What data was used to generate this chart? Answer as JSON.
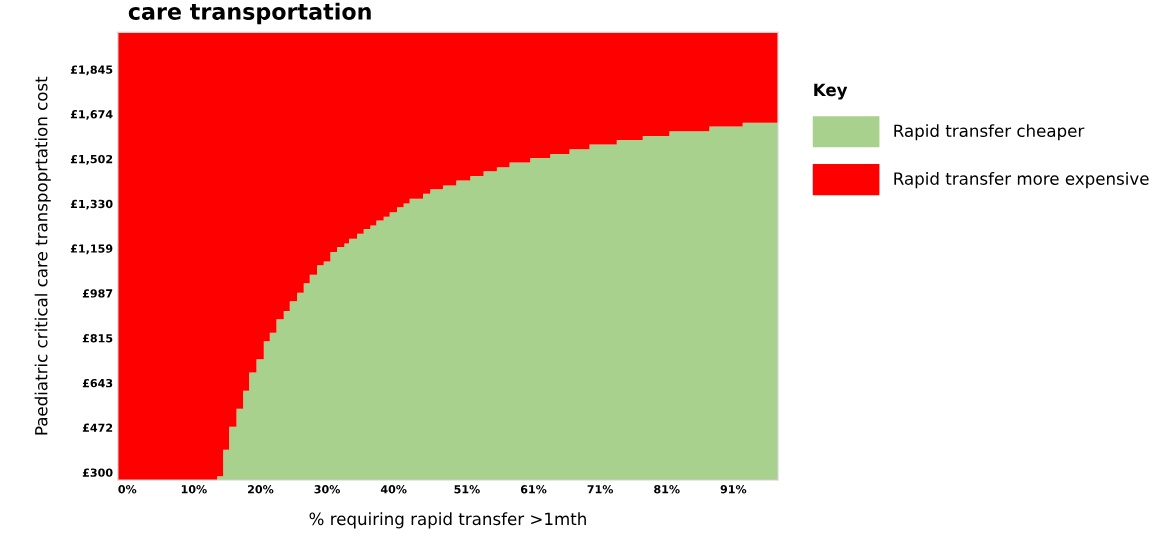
{
  "chart_data": {
    "type": "area",
    "stacked": true,
    "title": "care transportation",
    "xlabel": "% requiring rapid transfer >1mth",
    "ylabel": "Paediatric critical care transpoprtation cost",
    "legend_title": "Key",
    "legend": "right",
    "grid": false,
    "x": [
      -1.4,
      13.5,
      14.4,
      15.3,
      16.4,
      17.4,
      18.3,
      19.4,
      20.5,
      21.4,
      22.4,
      23.5,
      24.4,
      25.5,
      26.5,
      27.4,
      28.5,
      29.5,
      30.5,
      31.5,
      32.6,
      33.3,
      34.5,
      35.5,
      36.5,
      37.4,
      38.5,
      39.4,
      40.5,
      41.5,
      42.4,
      44.4,
      45.5,
      47.4,
      49.4,
      51.5,
      53.5,
      55.5,
      57.4,
      60.5,
      63.5,
      66.4,
      69.4,
      73.5,
      77.4,
      81.4,
      87.4,
      92.4,
      97.7
    ],
    "series": [
      {
        "name": "Rapid transfer cheaper",
        "color": "#a9d18e",
        "values": [
          271,
          285,
          387,
          475,
          544,
          613,
          683,
          734,
          803,
          836,
          887,
          919,
          956,
          989,
          1025,
          1058,
          1094,
          1109,
          1145,
          1164,
          1178,
          1196,
          1215,
          1233,
          1247,
          1266,
          1280,
          1298,
          1317,
          1331,
          1349,
          1368,
          1386,
          1400,
          1419,
          1437,
          1455,
          1470,
          1488,
          1506,
          1521,
          1539,
          1557,
          1575,
          1590,
          1608,
          1626,
          1641,
          1641
        ]
      },
      {
        "name": "Rapid transfer more expensive",
        "color": "#ff0000",
        "values": [
          1716,
          1702,
          1600,
          1512,
          1443,
          1374,
          1304,
          1253,
          1184,
          1151,
          1100,
          1068,
          1031,
          998,
          962,
          929,
          893,
          878,
          842,
          823,
          809,
          791,
          772,
          754,
          740,
          721,
          707,
          689,
          670,
          656,
          638,
          619,
          601,
          587,
          568,
          550,
          532,
          517,
          499,
          481,
          466,
          448,
          430,
          412,
          397,
          379,
          361,
          346,
          346
        ]
      }
    ],
    "xlim": [
      -1.4,
      97.7
    ],
    "ylim": [
      271,
      1987
    ],
    "xticks": [
      {
        "value": 0,
        "label": "0%"
      },
      {
        "value": 10,
        "label": "10%"
      },
      {
        "value": 20,
        "label": "20%"
      },
      {
        "value": 30,
        "label": "30%"
      },
      {
        "value": 40,
        "label": "40%"
      },
      {
        "value": 51,
        "label": "51%"
      },
      {
        "value": 61,
        "label": "61%"
      },
      {
        "value": 71,
        "label": "71%"
      },
      {
        "value": 81,
        "label": "81%"
      },
      {
        "value": 91,
        "label": "91%"
      }
    ],
    "yticks": [
      {
        "value": 300,
        "label": "£300"
      },
      {
        "value": 472,
        "label": "£472"
      },
      {
        "value": 643,
        "label": "£643"
      },
      {
        "value": 815,
        "label": "£815"
      },
      {
        "value": 987,
        "label": "£987"
      },
      {
        "value": 1159,
        "label": "£1,159"
      },
      {
        "value": 1330,
        "label": "£1,330"
      },
      {
        "value": 1502,
        "label": "£1,502"
      },
      {
        "value": 1674,
        "label": "£1,674"
      },
      {
        "value": 1845,
        "label": "£1,845"
      }
    ]
  }
}
